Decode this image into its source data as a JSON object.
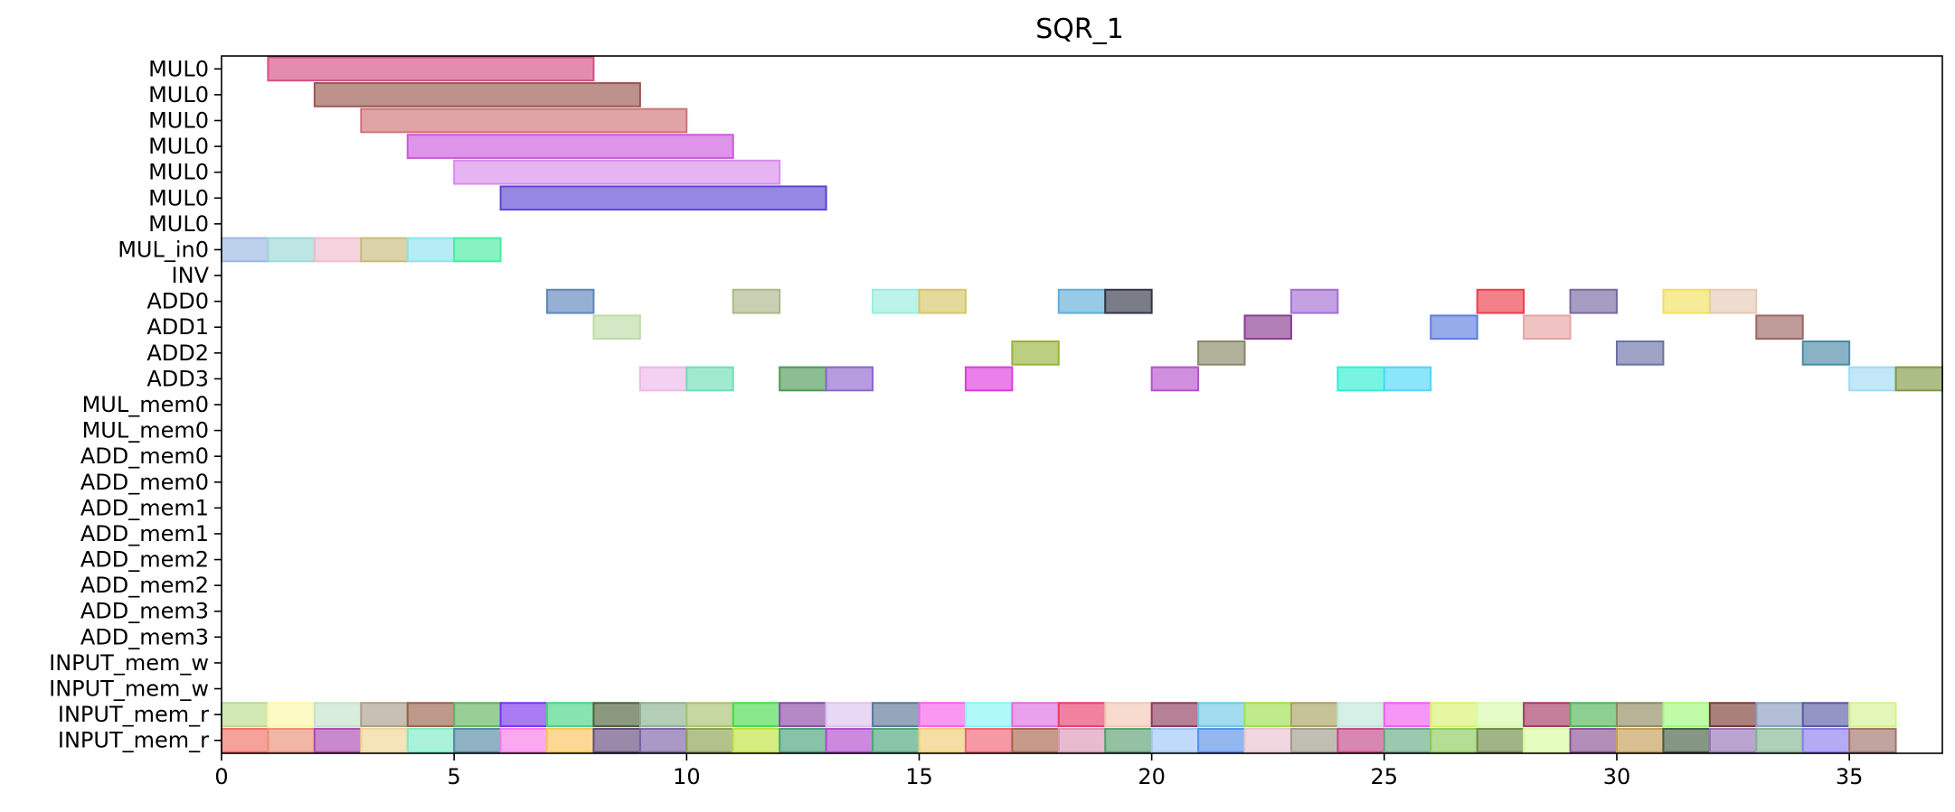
{
  "chart_data": {
    "type": "gantt",
    "title": "SQR_1",
    "xlabel": "",
    "ylabel": "",
    "xlim": [
      0,
      37
    ],
    "x_ticks": [
      0,
      5,
      10,
      15,
      20,
      25,
      30,
      35
    ],
    "grid": false,
    "rows": [
      "MUL0",
      "MUL0",
      "MUL0",
      "MUL0",
      "MUL0",
      "MUL0",
      "MUL0",
      "MUL_in0",
      "INV",
      "ADD0",
      "ADD1",
      "ADD2",
      "ADD3",
      "MUL_mem0",
      "MUL_mem0",
      "ADD_mem0",
      "ADD_mem0",
      "ADD_mem1",
      "ADD_mem1",
      "ADD_mem2",
      "ADD_mem2",
      "ADD_mem3",
      "ADD_mem3",
      "INPUT_mem_w",
      "INPUT_mem_w",
      "INPUT_mem_r",
      "INPUT_mem_r"
    ],
    "bars": [
      {
        "row": 0,
        "start": 1,
        "end": 8,
        "color": "#d64f86"
      },
      {
        "row": 1,
        "start": 2,
        "end": 9,
        "color": "#9a574f"
      },
      {
        "row": 2,
        "start": 3,
        "end": 10,
        "color": "#cf7378"
      },
      {
        "row": 3,
        "start": 4,
        "end": 11,
        "color": "#cc5bdc"
      },
      {
        "row": 4,
        "start": 5,
        "end": 12,
        "color": "#d98cec"
      },
      {
        "row": 5,
        "start": 6,
        "end": 13,
        "color": "#5c46d4"
      },
      {
        "row": 7,
        "start": 0,
        "end": 1,
        "color": "#9bb8e2"
      },
      {
        "row": 7,
        "start": 1,
        "end": 2,
        "color": "#9bd8d6"
      },
      {
        "row": 7,
        "start": 2,
        "end": 3,
        "color": "#eebccc"
      },
      {
        "row": 7,
        "start": 3,
        "end": 4,
        "color": "#c7bb7b"
      },
      {
        "row": 7,
        "start": 4,
        "end": 5,
        "color": "#8ce4ef"
      },
      {
        "row": 7,
        "start": 5,
        "end": 6,
        "color": "#47eca2"
      },
      {
        "row": 9,
        "start": 7,
        "end": 8,
        "color": "#5e85bb"
      },
      {
        "row": 9,
        "start": 11,
        "end": 12,
        "color": "#aab98a"
      },
      {
        "row": 9,
        "start": 14,
        "end": 15,
        "color": "#98eedf"
      },
      {
        "row": 9,
        "start": 15,
        "end": 16,
        "color": "#d6c666"
      },
      {
        "row": 9,
        "start": 18,
        "end": 19,
        "color": "#5fadda"
      },
      {
        "row": 9,
        "start": 19,
        "end": 20,
        "color": "#323646"
      },
      {
        "row": 9,
        "start": 23,
        "end": 24,
        "color": "#a36fd4"
      },
      {
        "row": 9,
        "start": 27,
        "end": 28,
        "color": "#ec3d4c"
      },
      {
        "row": 9,
        "start": 29,
        "end": 30,
        "color": "#766aa2"
      },
      {
        "row": 9,
        "start": 31,
        "end": 32,
        "color": "#f1e05e"
      },
      {
        "row": 9,
        "start": 32,
        "end": 33,
        "color": "#e6c9b6"
      },
      {
        "row": 10,
        "start": 8,
        "end": 9,
        "color": "#bfdca6"
      },
      {
        "row": 10,
        "start": 22,
        "end": 23,
        "color": "#883c91"
      },
      {
        "row": 10,
        "start": 26,
        "end": 27,
        "color": "#5c7ede"
      },
      {
        "row": 10,
        "start": 28,
        "end": 29,
        "color": "#e8a3a3"
      },
      {
        "row": 10,
        "start": 33,
        "end": 34,
        "color": "#9d6664"
      },
      {
        "row": 11,
        "start": 17,
        "end": 18,
        "color": "#98b33b"
      },
      {
        "row": 11,
        "start": 21,
        "end": 22,
        "color": "#878865"
      },
      {
        "row": 11,
        "start": 30,
        "end": 31,
        "color": "#6a71a6"
      },
      {
        "row": 11,
        "start": 34,
        "end": 35,
        "color": "#4a8ba4"
      },
      {
        "row": 12,
        "start": 9,
        "end": 10,
        "color": "#eeb7ea"
      },
      {
        "row": 12,
        "start": 10,
        "end": 11,
        "color": "#6edfb5"
      },
      {
        "row": 12,
        "start": 12,
        "end": 13,
        "color": "#4f9b57"
      },
      {
        "row": 12,
        "start": 13,
        "end": 14,
        "color": "#8d67cc"
      },
      {
        "row": 12,
        "start": 16,
        "end": 17,
        "color": "#e03be0"
      },
      {
        "row": 12,
        "start": 20,
        "end": 21,
        "color": "#b553cc"
      },
      {
        "row": 12,
        "start": 24,
        "end": 25,
        "color": "#2ff0d2"
      },
      {
        "row": 12,
        "start": 25,
        "end": 26,
        "color": "#4cd9f6"
      },
      {
        "row": 12,
        "start": 35,
        "end": 36,
        "color": "#a0daf6"
      },
      {
        "row": 12,
        "start": 36,
        "end": 37,
        "color": "#7f9a45"
      },
      {
        "row": 25,
        "start": 0,
        "end": 1,
        "color": "#b8dc8c"
      },
      {
        "row": 25,
        "start": 1,
        "end": 2,
        "color": "#fdf8a8"
      },
      {
        "row": 25,
        "start": 2,
        "end": 3,
        "color": "#c3e4c9"
      },
      {
        "row": 25,
        "start": 3,
        "end": 4,
        "color": "#ab9e8e"
      },
      {
        "row": 25,
        "start": 4,
        "end": 5,
        "color": "#9a6249"
      },
      {
        "row": 25,
        "start": 5,
        "end": 6,
        "color": "#62b55e"
      },
      {
        "row": 25,
        "start": 6,
        "end": 7,
        "color": "#7a34f0"
      },
      {
        "row": 25,
        "start": 7,
        "end": 8,
        "color": "#46d485"
      },
      {
        "row": 25,
        "start": 8,
        "end": 9,
        "color": "#4d633a"
      },
      {
        "row": 25,
        "start": 9,
        "end": 10,
        "color": "#8bb28f"
      },
      {
        "row": 25,
        "start": 10,
        "end": 11,
        "color": "#a9c170"
      },
      {
        "row": 25,
        "start": 11,
        "end": 12,
        "color": "#48dc4d"
      },
      {
        "row": 25,
        "start": 12,
        "end": 13,
        "color": "#8b4aa6"
      },
      {
        "row": 25,
        "start": 13,
        "end": 14,
        "color": "#dcc3f1"
      },
      {
        "row": 25,
        "start": 14,
        "end": 15,
        "color": "#5b7797"
      },
      {
        "row": 25,
        "start": 15,
        "end": 16,
        "color": "#f760ec"
      },
      {
        "row": 25,
        "start": 16,
        "end": 17,
        "color": "#86f6f6"
      },
      {
        "row": 25,
        "start": 17,
        "end": 18,
        "color": "#de6fe0"
      },
      {
        "row": 25,
        "start": 18,
        "end": 19,
        "color": "#eb3e6c"
      },
      {
        "row": 25,
        "start": 19,
        "end": 20,
        "color": "#f2c7b4"
      },
      {
        "row": 25,
        "start": 20,
        "end": 21,
        "color": "#8f3c5d"
      },
      {
        "row": 25,
        "start": 21,
        "end": 22,
        "color": "#70c7e4"
      },
      {
        "row": 25,
        "start": 22,
        "end": 23,
        "color": "#9de14b"
      },
      {
        "row": 25,
        "start": 23,
        "end": 24,
        "color": "#a8a363"
      },
      {
        "row": 25,
        "start": 24,
        "end": 25,
        "color": "#c0e8da"
      },
      {
        "row": 25,
        "start": 25,
        "end": 26,
        "color": "#f25ef3"
      },
      {
        "row": 25,
        "start": 26,
        "end": 27,
        "color": "#d8f36e"
      },
      {
        "row": 25,
        "start": 27,
        "end": 28,
        "color": "#d8fbaa"
      },
      {
        "row": 25,
        "start": 28,
        "end": 29,
        "color": "#a63963"
      },
      {
        "row": 25,
        "start": 29,
        "end": 30,
        "color": "#4fb756"
      },
      {
        "row": 25,
        "start": 30,
        "end": 31,
        "color": "#8f8a60"
      },
      {
        "row": 25,
        "start": 31,
        "end": 32,
        "color": "#9efb7a"
      },
      {
        "row": 25,
        "start": 32,
        "end": 33,
        "color": "#7c3c32"
      },
      {
        "row": 25,
        "start": 33,
        "end": 34,
        "color": "#8b9cc2"
      },
      {
        "row": 25,
        "start": 34,
        "end": 35,
        "color": "#5a5ba6"
      },
      {
        "row": 25,
        "start": 35,
        "end": 36,
        "color": "#d4f392"
      },
      {
        "row": 26,
        "start": 0,
        "end": 1,
        "color": "#f17066"
      },
      {
        "row": 26,
        "start": 1,
        "end": 2,
        "color": "#ea8f76"
      },
      {
        "row": 26,
        "start": 2,
        "end": 3,
        "color": "#ad4ab2"
      },
      {
        "row": 26,
        "start": 3,
        "end": 4,
        "color": "#f0d694"
      },
      {
        "row": 26,
        "start": 4,
        "end": 5,
        "color": "#7cecc6"
      },
      {
        "row": 26,
        "start": 5,
        "end": 6,
        "color": "#5489a1"
      },
      {
        "row": 26,
        "start": 6,
        "end": 7,
        "color": "#f77ae8"
      },
      {
        "row": 26,
        "start": 7,
        "end": 8,
        "color": "#fcc35a"
      },
      {
        "row": 26,
        "start": 8,
        "end": 9,
        "color": "#664a7d"
      },
      {
        "row": 26,
        "start": 9,
        "end": 10,
        "color": "#7d63a8"
      },
      {
        "row": 26,
        "start": 10,
        "end": 11,
        "color": "#8aa250"
      },
      {
        "row": 26,
        "start": 11,
        "end": 12,
        "color": "#c0e33f"
      },
      {
        "row": 26,
        "start": 12,
        "end": 13,
        "color": "#49a17a"
      },
      {
        "row": 26,
        "start": 13,
        "end": 14,
        "color": "#b14ccd"
      },
      {
        "row": 26,
        "start": 14,
        "end": 15,
        "color": "#4da67a"
      },
      {
        "row": 26,
        "start": 15,
        "end": 16,
        "color": "#eecd71"
      },
      {
        "row": 26,
        "start": 16,
        "end": 17,
        "color": "#f36273"
      },
      {
        "row": 26,
        "start": 17,
        "end": 18,
        "color": "#a9664d"
      },
      {
        "row": 26,
        "start": 18,
        "end": 19,
        "color": "#dc97b6"
      },
      {
        "row": 26,
        "start": 19,
        "end": 20,
        "color": "#5b9f70"
      },
      {
        "row": 26,
        "start": 20,
        "end": 21,
        "color": "#9dc6f7"
      },
      {
        "row": 26,
        "start": 21,
        "end": 22,
        "color": "#5a91e8"
      },
      {
        "row": 26,
        "start": 22,
        "end": 23,
        "color": "#e9c2d0"
      },
      {
        "row": 26,
        "start": 23,
        "end": 24,
        "color": "#9f9d8a"
      },
      {
        "row": 26,
        "start": 24,
        "end": 25,
        "color": "#c34886"
      },
      {
        "row": 26,
        "start": 25,
        "end": 26,
        "color": "#65ab84"
      },
      {
        "row": 26,
        "start": 26,
        "end": 27,
        "color": "#8ccc5c"
      },
      {
        "row": 26,
        "start": 27,
        "end": 28,
        "color": "#6e8c48"
      },
      {
        "row": 26,
        "start": 28,
        "end": 29,
        "color": "#d9fca0"
      },
      {
        "row": 26,
        "start": 29,
        "end": 30,
        "color": "#8b5194"
      },
      {
        "row": 26,
        "start": 30,
        "end": 31,
        "color": "#c49e58"
      },
      {
        "row": 26,
        "start": 31,
        "end": 32,
        "color": "#435d43"
      },
      {
        "row": 26,
        "start": 32,
        "end": 33,
        "color": "#9674b7"
      },
      {
        "row": 26,
        "start": 33,
        "end": 34,
        "color": "#84b594"
      },
      {
        "row": 26,
        "start": 34,
        "end": 35,
        "color": "#8b7ef1"
      },
      {
        "row": 26,
        "start": 35,
        "end": 36,
        "color": "#a2736b"
      }
    ]
  }
}
